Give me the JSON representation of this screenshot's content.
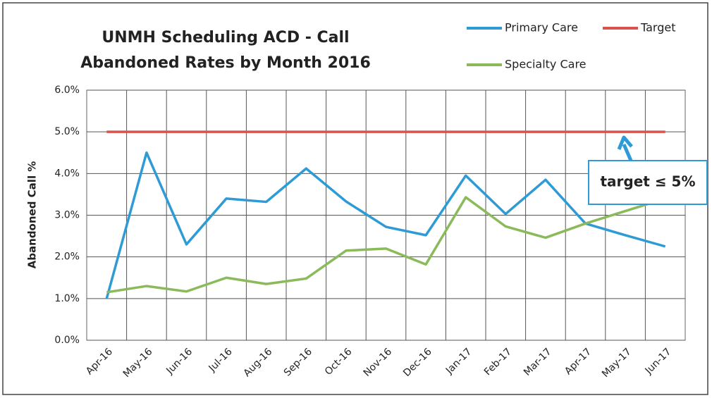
{
  "chart_data": {
    "type": "line",
    "title": "UNMH Scheduling ACD - Call\nAbandoned Rates by Month 2016",
    "y_label": "Abandoned Call %",
    "categories": [
      "Apr-16",
      "May-16",
      "Jun-16",
      "Jul-16",
      "Aug-16",
      "Sep-16",
      "Oct-16",
      "Nov-16",
      "Dec-16",
      "Jan-17",
      "Feb-17",
      "Mar-17",
      "Apr-17",
      "May-17",
      "Jun-17"
    ],
    "series": [
      {
        "name": "Primary Care",
        "color": "#2e9bd6",
        "values": [
          1.0,
          4.5,
          2.3,
          3.4,
          3.32,
          4.12,
          3.33,
          2.72,
          2.52,
          3.95,
          3.03,
          3.85,
          2.8,
          2.52,
          2.25
        ]
      },
      {
        "name": "Target",
        "color": "#d9534f",
        "values": [
          5.0,
          5.0,
          5.0,
          5.0,
          5.0,
          5.0,
          5.0,
          5.0,
          5.0,
          5.0,
          5.0,
          5.0,
          5.0,
          5.0,
          5.0
        ]
      },
      {
        "name": "Specialty Care",
        "color": "#8bba5a",
        "values": [
          1.15,
          1.3,
          1.17,
          1.5,
          1.35,
          1.48,
          2.15,
          2.2,
          1.82,
          3.43,
          2.73,
          2.46,
          2.8,
          3.1,
          3.4
        ]
      }
    ],
    "ylim": [
      0,
      6
    ],
    "yticks": [
      {
        "value": 0,
        "label": "0.0%"
      },
      {
        "value": 1,
        "label": "1.0%"
      },
      {
        "value": 2,
        "label": "2.0%"
      },
      {
        "value": 3,
        "label": "3.0%"
      },
      {
        "value": 4,
        "label": "4.0%"
      },
      {
        "value": 5,
        "label": "5.0%"
      },
      {
        "value": 6,
        "label": "6.0%"
      }
    ],
    "grid": true,
    "legend": "top-right",
    "annotation": "target ≤ 5%"
  }
}
